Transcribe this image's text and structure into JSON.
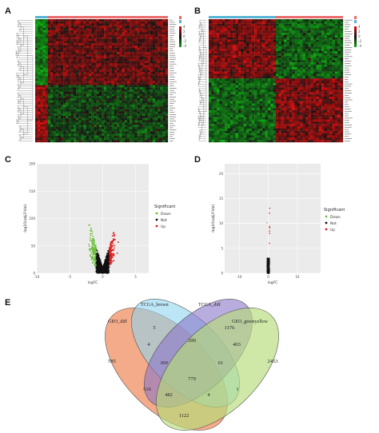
{
  "panels": {
    "A": {
      "label": "A"
    },
    "B": {
      "label": "B"
    },
    "C": {
      "label": "C"
    },
    "D": {
      "label": "D"
    },
    "E": {
      "label": "E"
    }
  },
  "heatmap_legend": {
    "group_colors": [
      "#ea6b6b",
      "#55b4d6"
    ],
    "scale_colors": [
      "#e01010",
      "#111111",
      "#14a014"
    ],
    "ticks_A": [
      "4",
      "2",
      "0",
      "-2",
      "-4"
    ]
  },
  "chart_data": [
    {
      "type": "scatter",
      "panel": "C",
      "xlabel": "logFC",
      "ylabel": "-log10(adj.P.Val)",
      "xticks": [
        "-10",
        "-5",
        "0",
        "5"
      ],
      "yticks": [
        "0",
        "50",
        "100",
        "150",
        "200"
      ],
      "xlim": [
        -10,
        7
      ],
      "ylim": [
        0,
        200
      ],
      "legend_title": "Significant",
      "series": [
        {
          "name": "Down",
          "color": "#6abf3a"
        },
        {
          "name": "Not",
          "color": "#111111"
        },
        {
          "name": "Up",
          "color": "#e02020"
        }
      ]
    },
    {
      "type": "scatter",
      "panel": "D",
      "xlabel": "logFC",
      "ylabel": "-log10(adj.P.Val)",
      "xticks": [
        "-10",
        "0",
        "10"
      ],
      "yticks": [
        "0",
        "5",
        "10",
        "15",
        "20"
      ],
      "xlim": [
        -15,
        18
      ],
      "ylim": [
        0,
        22
      ],
      "legend_title": "Significant",
      "series": [
        {
          "name": "Down",
          "color": "#6abf3a"
        },
        {
          "name": "Not",
          "color": "#111111"
        },
        {
          "name": "Up",
          "color": "#e02020"
        }
      ]
    }
  ],
  "venn": {
    "sets": [
      {
        "name": "GEO_diff",
        "color": "#f08a5d"
      },
      {
        "name": "TCGA_brown",
        "color": "#8fd3ee"
      },
      {
        "name": "TCGA_diff",
        "color": "#8a74c8"
      },
      {
        "name": "GEO_greenyellow",
        "color": "#b5dc7a"
      }
    ],
    "counts": [
      "585",
      "5",
      "1176",
      "2453",
      "4",
      "200",
      "403",
      "360",
      "61",
      "779",
      "516",
      "1",
      "482",
      "4",
      "1122"
    ]
  }
}
